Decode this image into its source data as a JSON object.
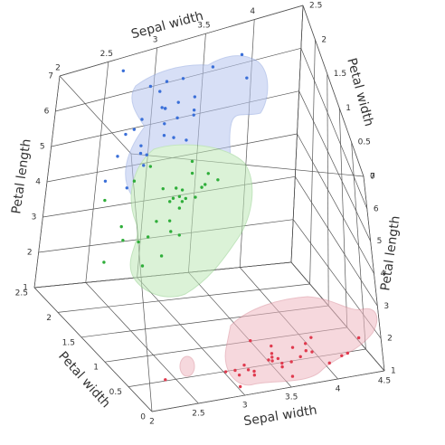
{
  "chart_data": {
    "type": "scatter3d",
    "x_label": "Sepal width",
    "y_label": "Petal length",
    "z_label": "Petal width",
    "xlim": [
      2,
      4.5
    ],
    "ylim": [
      1,
      7
    ],
    "zlim": [
      0,
      2.5
    ],
    "xticks": [
      2,
      2.5,
      3,
      3.5,
      4,
      4.5
    ],
    "yticks": [
      1,
      2,
      3,
      4,
      5,
      6,
      7
    ],
    "zticks": [
      0,
      0.5,
      1,
      1.5,
      2,
      2.5
    ],
    "grid": true,
    "series": [
      {
        "color": "#e03a4e",
        "x": [
          3.5,
          3.0,
          3.2,
          3.1,
          3.6,
          3.9,
          3.4,
          3.4,
          2.9,
          3.1,
          3.7,
          3.4,
          3.0,
          3.0,
          4.0,
          4.4,
          3.9,
          3.5,
          3.8,
          3.8,
          3.4,
          3.7,
          3.6,
          3.3,
          3.4,
          2.3,
          3.2,
          3.5,
          4.1,
          4.2
        ],
        "y": [
          1.4,
          1.4,
          1.3,
          1.5,
          1.4,
          1.7,
          1.4,
          1.5,
          1.4,
          1.5,
          1.5,
          1.6,
          1.4,
          1.1,
          1.2,
          1.5,
          1.3,
          1.4,
          1.7,
          1.5,
          1.7,
          1.5,
          1.0,
          1.7,
          1.9,
          1.3,
          1.2,
          1.3,
          1.5,
          1.4
        ],
        "z": [
          0.2,
          0.2,
          0.2,
          0.2,
          0.2,
          0.4,
          0.3,
          0.2,
          0.2,
          0.1,
          0.2,
          0.2,
          0.1,
          0.1,
          0.2,
          0.4,
          0.4,
          0.3,
          0.3,
          0.3,
          0.2,
          0.4,
          0.2,
          0.5,
          0.2,
          0.3,
          0.2,
          0.2,
          0.1,
          0.2
        ]
      },
      {
        "color": "#2fae3a",
        "x": [
          3.2,
          3.2,
          3.1,
          2.3,
          2.8,
          2.8,
          3.3,
          2.4,
          2.9,
          2.7,
          2.0,
          3.0,
          2.2,
          2.9,
          2.9,
          3.1,
          3.0,
          2.7,
          2.2,
          2.5,
          3.2,
          2.8,
          2.5,
          2.8,
          2.9,
          3.0,
          2.6,
          2.4,
          2.7,
          3.4
        ],
        "y": [
          4.7,
          4.5,
          4.9,
          4.0,
          4.6,
          4.5,
          4.7,
          3.3,
          4.6,
          3.9,
          3.5,
          4.2,
          4.0,
          4.7,
          3.6,
          4.4,
          4.5,
          4.1,
          4.5,
          3.9,
          4.8,
          4.0,
          4.9,
          4.7,
          4.3,
          4.4,
          3.5,
          3.8,
          5.1,
          4.5
        ],
        "z": [
          1.4,
          1.5,
          1.5,
          1.3,
          1.5,
          1.3,
          1.6,
          1.0,
          1.3,
          1.4,
          1.0,
          1.5,
          1.0,
          1.4,
          1.3,
          1.4,
          1.5,
          1.0,
          1.5,
          1.1,
          1.8,
          1.3,
          1.5,
          1.2,
          1.3,
          1.4,
          1.0,
          1.1,
          1.6,
          1.6
        ]
      },
      {
        "color": "#3a6fd8",
        "x": [
          3.3,
          2.7,
          3.0,
          2.9,
          3.0,
          3.0,
          2.5,
          2.9,
          2.5,
          3.6,
          3.2,
          2.7,
          3.0,
          2.5,
          2.8,
          3.2,
          3.0,
          3.8,
          2.6,
          2.2,
          3.2,
          2.8,
          2.8,
          2.7,
          3.3,
          3.2,
          3.8,
          2.8,
          3.0,
          3.4
        ],
        "y": [
          6.0,
          5.1,
          5.9,
          5.6,
          5.8,
          6.6,
          4.5,
          6.3,
          5.8,
          6.1,
          5.1,
          5.3,
          5.5,
          5.0,
          5.1,
          5.3,
          5.5,
          6.7,
          6.9,
          5.0,
          5.7,
          4.9,
          6.7,
          4.9,
          5.7,
          6.0,
          6.4,
          5.6,
          6.1,
          5.6
        ],
        "z": [
          2.5,
          1.9,
          2.1,
          1.8,
          2.2,
          2.1,
          1.7,
          1.8,
          1.8,
          2.5,
          2.0,
          1.9,
          2.1,
          2.0,
          2.4,
          2.3,
          1.8,
          2.2,
          2.3,
          1.5,
          2.3,
          2.0,
          2.0,
          1.8,
          2.1,
          1.8,
          2.0,
          2.2,
          2.3,
          2.4
        ]
      }
    ]
  }
}
